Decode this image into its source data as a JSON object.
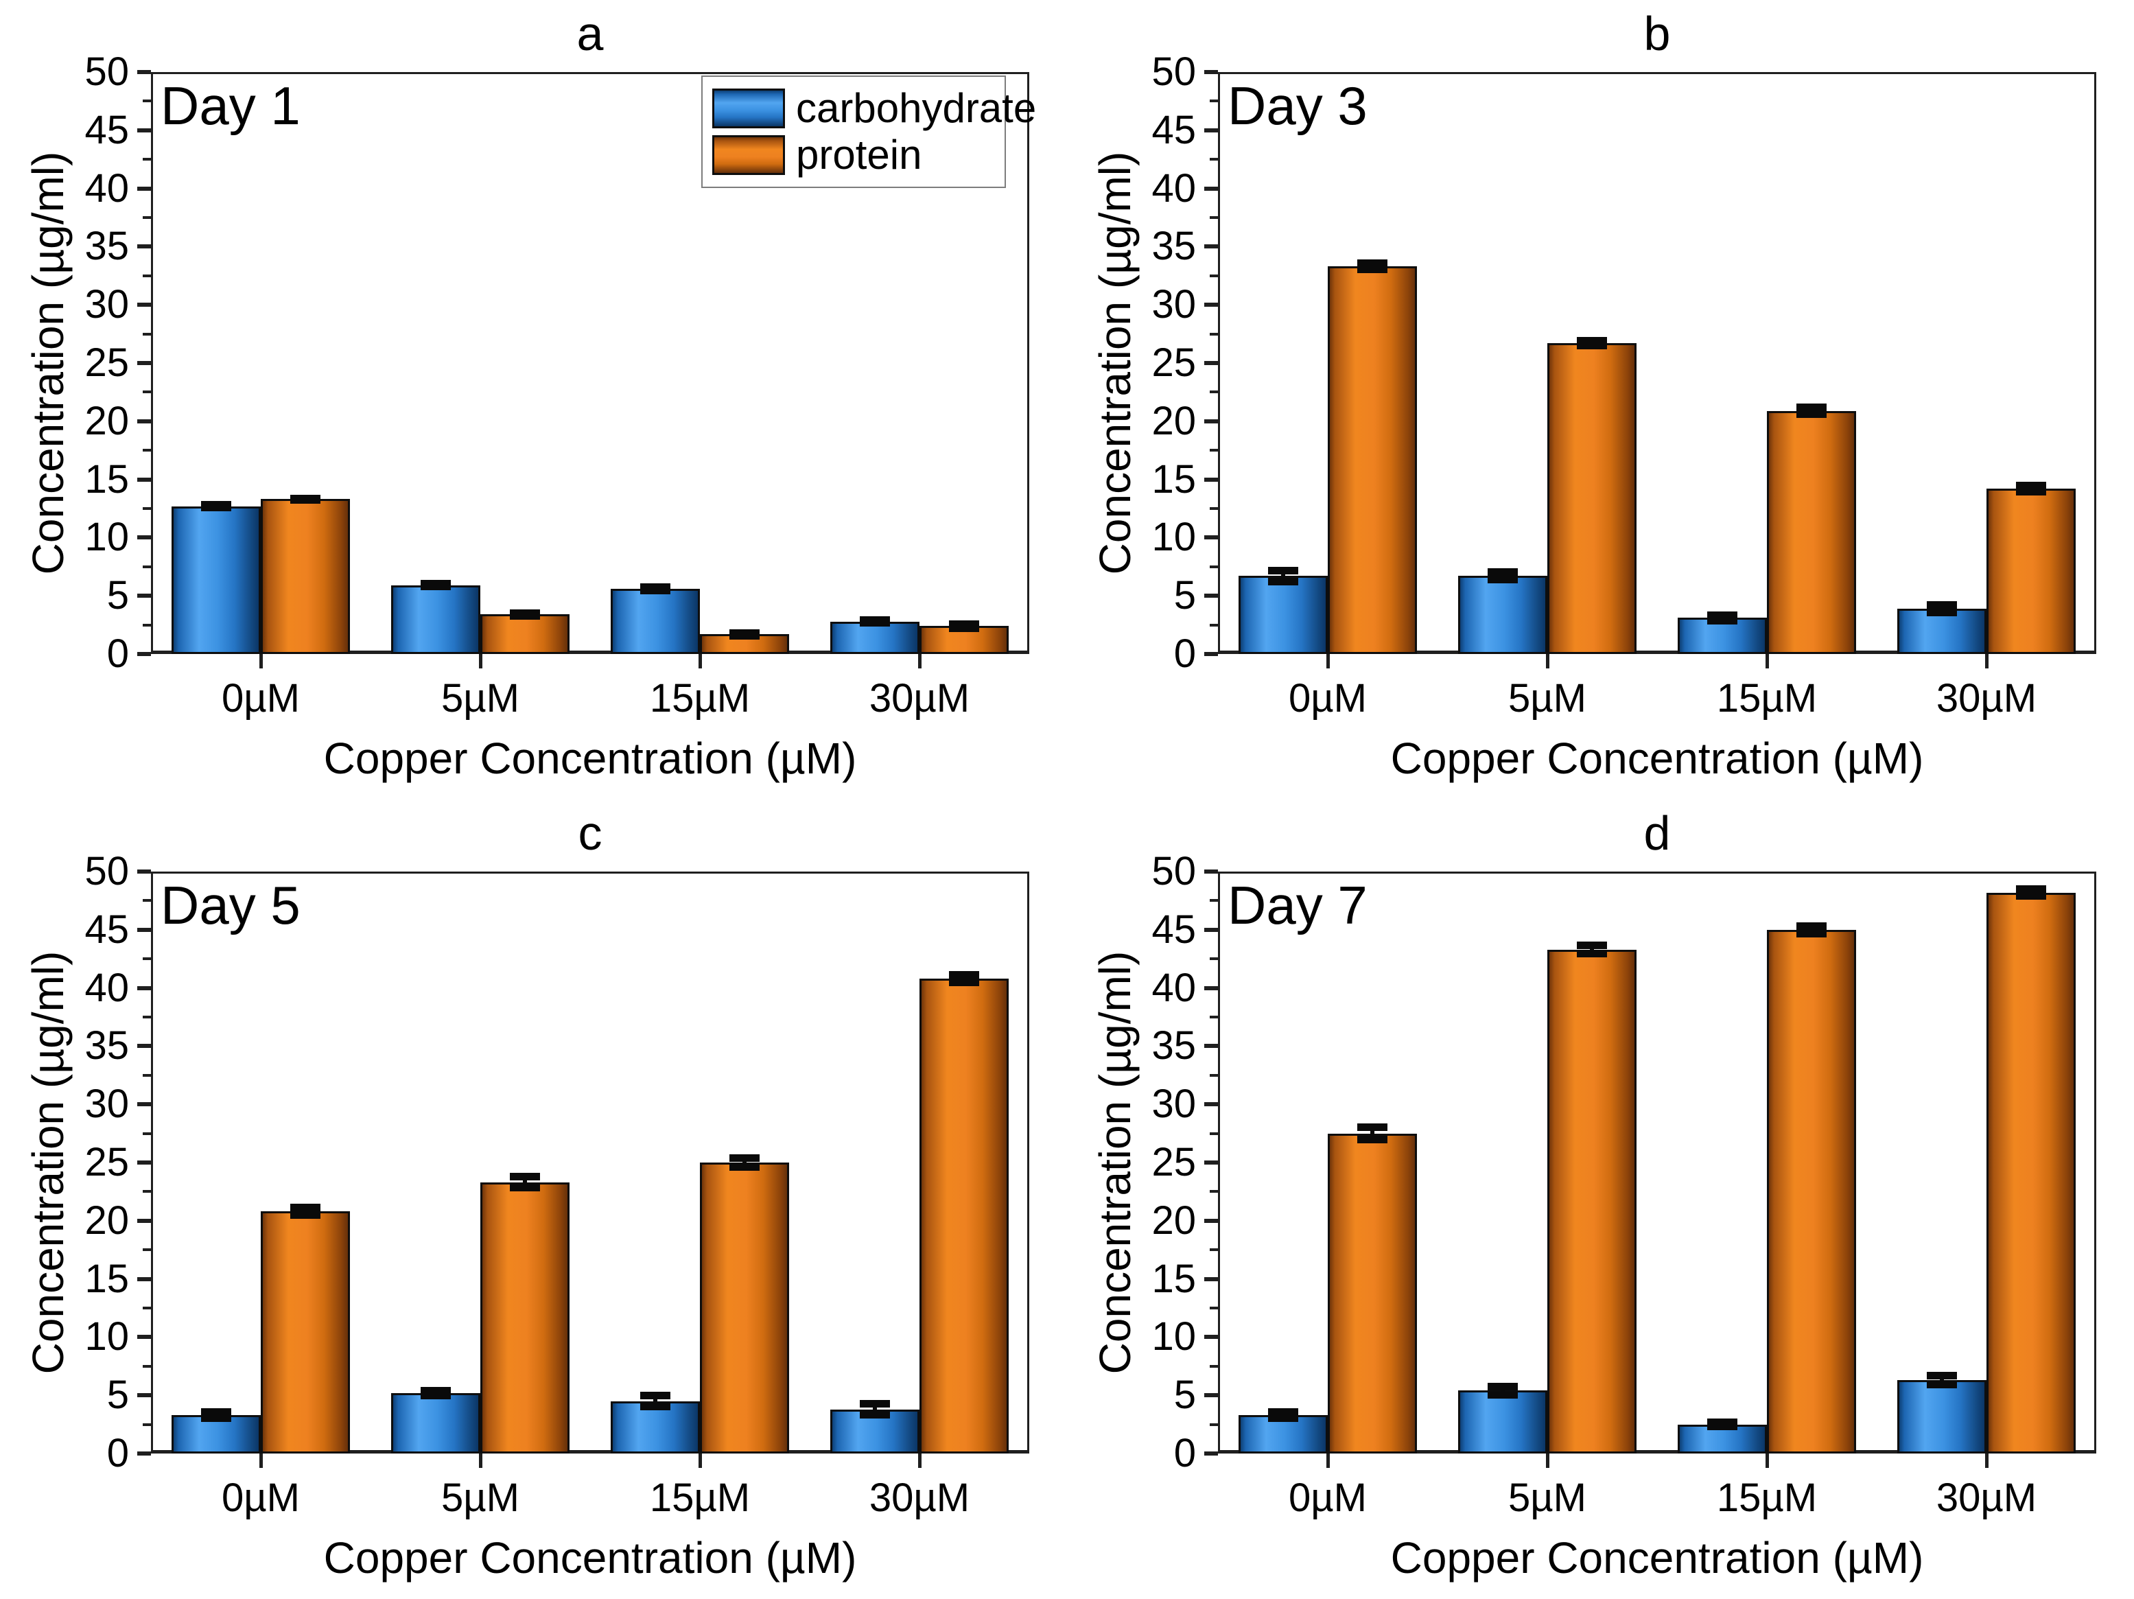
{
  "figure": {
    "y_axis_label": "Concentration (µg/ml)",
    "x_axis_label": "Copper Concentration (µM)",
    "categories": [
      "0µM",
      "5µM",
      "15µM",
      "30µM"
    ],
    "y_ticks": [
      0,
      5,
      10,
      15,
      20,
      25,
      30,
      35,
      40,
      45,
      50
    ],
    "legend": {
      "items": [
        {
          "label": "carbohydrate",
          "series": "carbohydrate"
        },
        {
          "label": "protein",
          "series": "protein"
        }
      ]
    },
    "colors": {
      "carbohydrate_main": "#3c92e2",
      "protein_main": "#ee8120",
      "frame": "#1f1f1f",
      "error_bar": "#0a0a0a"
    }
  },
  "chart_data": [
    {
      "type": "bar",
      "panel_letter": "a",
      "title": "Day 1",
      "categories": [
        "0µM",
        "5µM",
        "15µM",
        "30µM"
      ],
      "xlabel": "Copper Concentration (µM)",
      "ylabel": "Concentration (µg/ml)",
      "ylim": [
        0,
        50
      ],
      "legend_position": "top-right-inside",
      "grid": false,
      "series": [
        {
          "name": "carbohydrate",
          "values": [
            12.7,
            5.9,
            5.6,
            2.8
          ],
          "errors": [
            0.15,
            0.15,
            0.2,
            0.15
          ]
        },
        {
          "name": "protein",
          "values": [
            13.3,
            3.4,
            1.7,
            2.4
          ],
          "errors": [
            0.1,
            0.15,
            0.15,
            0.2
          ]
        }
      ]
    },
    {
      "type": "bar",
      "panel_letter": "b",
      "title": "Day 3",
      "categories": [
        "0µM",
        "5µM",
        "15µM",
        "30µM"
      ],
      "xlabel": "Copper Concentration (µM)",
      "ylabel": "Concentration (µg/ml)",
      "ylim": [
        0,
        50
      ],
      "grid": false,
      "series": [
        {
          "name": "carbohydrate",
          "values": [
            6.7,
            6.7,
            3.1,
            3.9
          ],
          "errors": [
            0.5,
            0.35,
            0.25,
            0.35
          ]
        },
        {
          "name": "protein",
          "values": [
            33.3,
            26.7,
            20.9,
            14.2
          ],
          "errors": [
            0.3,
            0.25,
            0.3,
            0.3
          ]
        }
      ]
    },
    {
      "type": "bar",
      "panel_letter": "c",
      "title": "Day 5",
      "categories": [
        "0µM",
        "5µM",
        "15µM",
        "30µM"
      ],
      "xlabel": "Copper Concentration (µM)",
      "ylabel": "Concentration (µg/ml)",
      "ylim": [
        0,
        50
      ],
      "grid": false,
      "series": [
        {
          "name": "carbohydrate",
          "values": [
            3.3,
            5.2,
            4.5,
            3.8
          ],
          "errors": [
            0.3,
            0.25,
            0.5,
            0.5
          ]
        },
        {
          "name": "protein",
          "values": [
            20.8,
            23.3,
            25.0,
            40.8
          ],
          "errors": [
            0.35,
            0.5,
            0.4,
            0.35
          ]
        }
      ]
    },
    {
      "type": "bar",
      "panel_letter": "d",
      "title": "Day 7",
      "categories": [
        "0µM",
        "5µM",
        "15µM",
        "30µM"
      ],
      "xlabel": "Copper Concentration (µM)",
      "ylabel": "Concentration (µg/ml)",
      "ylim": [
        0,
        50
      ],
      "grid": false,
      "series": [
        {
          "name": "carbohydrate",
          "values": [
            3.3,
            5.4,
            2.5,
            6.3
          ],
          "errors": [
            0.3,
            0.4,
            0.2,
            0.4
          ]
        },
        {
          "name": "protein",
          "values": [
            27.5,
            43.3,
            45.0,
            48.2
          ],
          "errors": [
            0.55,
            0.4,
            0.35,
            0.35
          ]
        }
      ]
    }
  ]
}
